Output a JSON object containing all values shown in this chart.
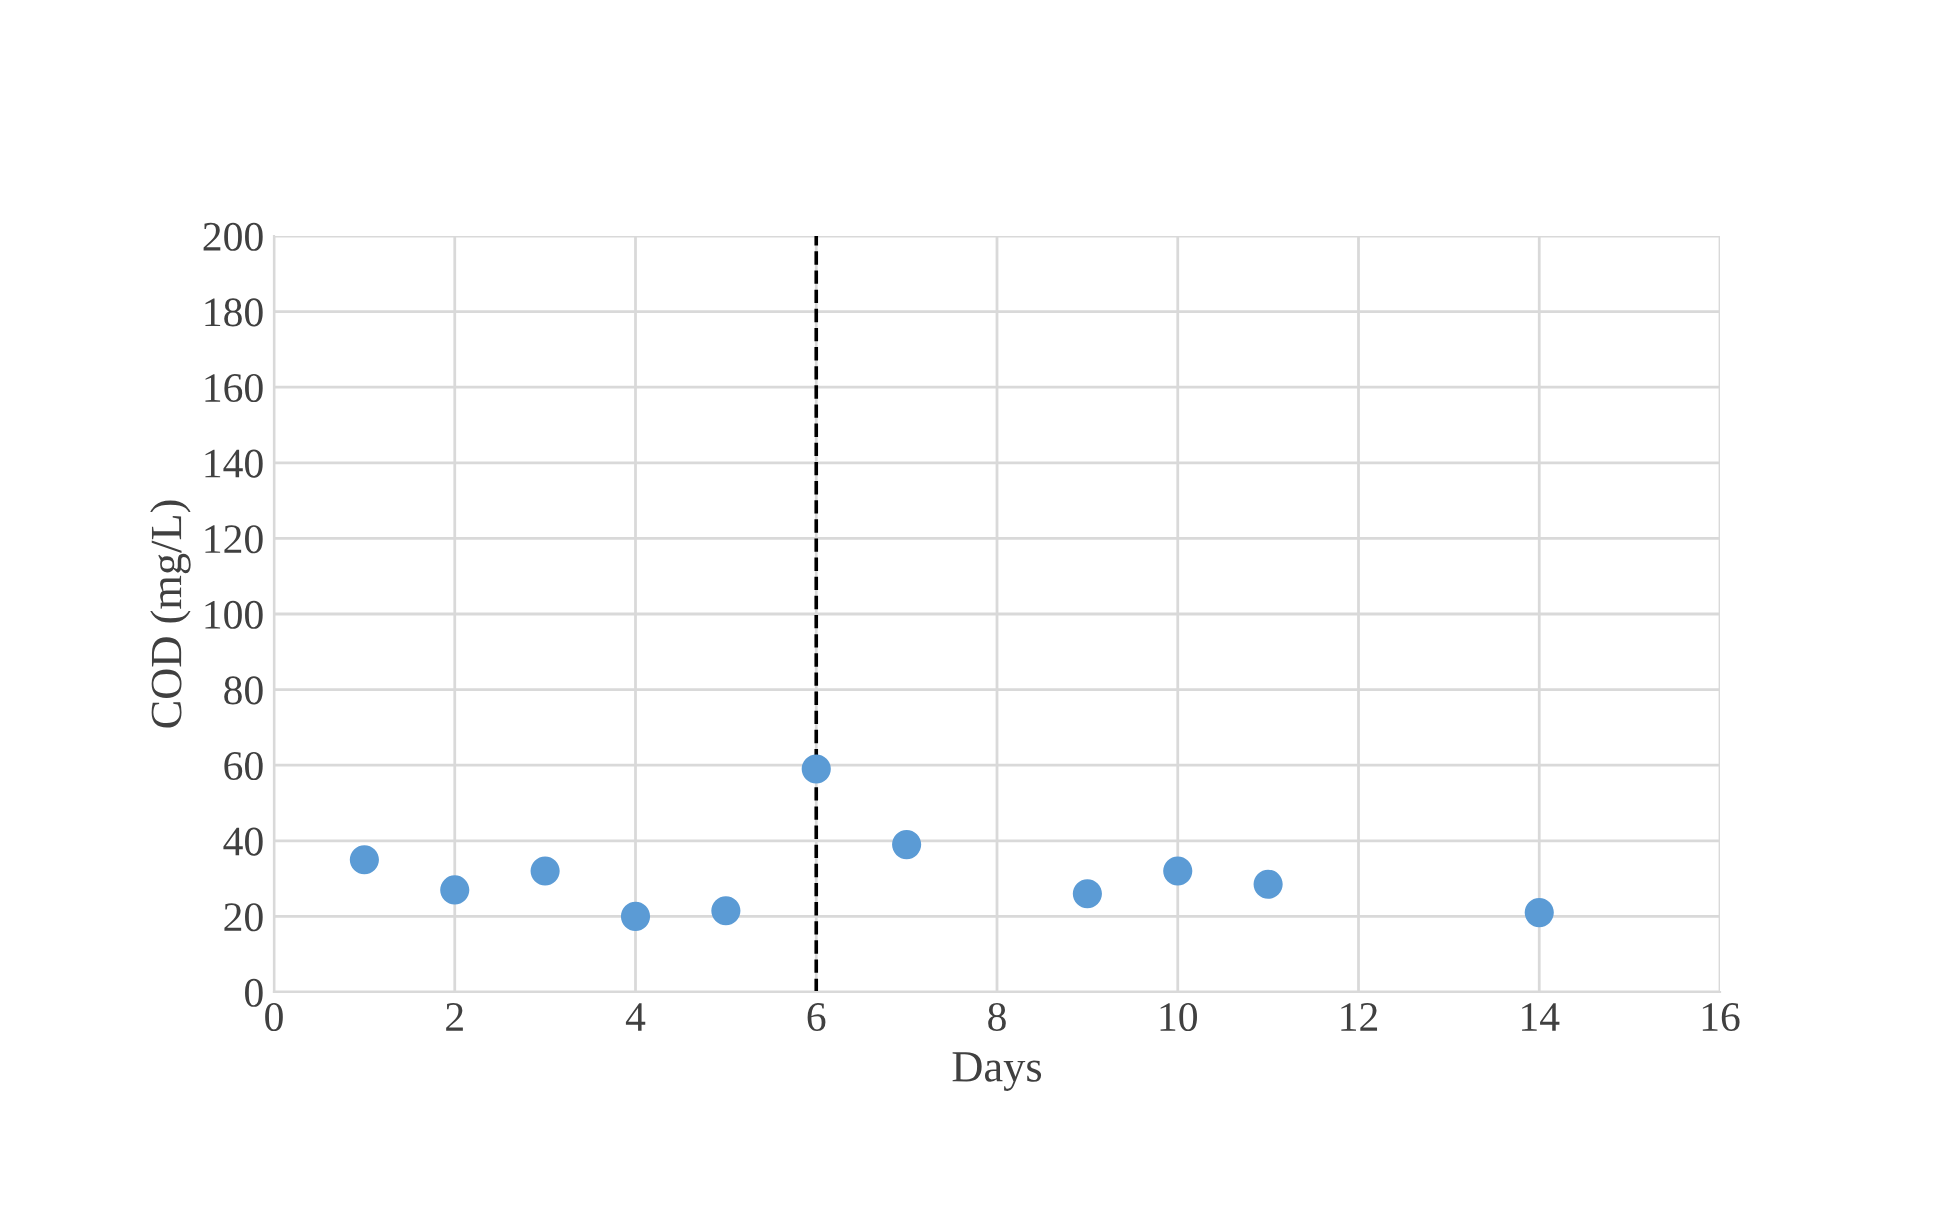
{
  "chart_data": {
    "type": "scatter",
    "xlabel": "Days",
    "ylabel": "COD (mg/L)",
    "x": [
      1,
      2,
      3,
      4,
      5,
      6,
      7,
      9,
      10,
      11,
      14
    ],
    "series": [
      {
        "color": "#5b9bd5",
        "values": [
          35,
          27,
          32,
          20,
          21.5,
          59,
          39,
          26,
          32,
          28.5,
          21
        ]
      }
    ],
    "xlim": [
      0,
      16
    ],
    "xticks": [
      0,
      2,
      4,
      6,
      8,
      10,
      12,
      14,
      16
    ],
    "ylim": [
      0,
      200
    ],
    "yticks": [
      0,
      20,
      40,
      60,
      80,
      100,
      120,
      140,
      160,
      180,
      200
    ],
    "grid": true,
    "marker": "circle",
    "ref_lines": [
      {
        "axis": "x",
        "value": 6,
        "color": "#000000",
        "line_style": "dashed"
      }
    ]
  }
}
